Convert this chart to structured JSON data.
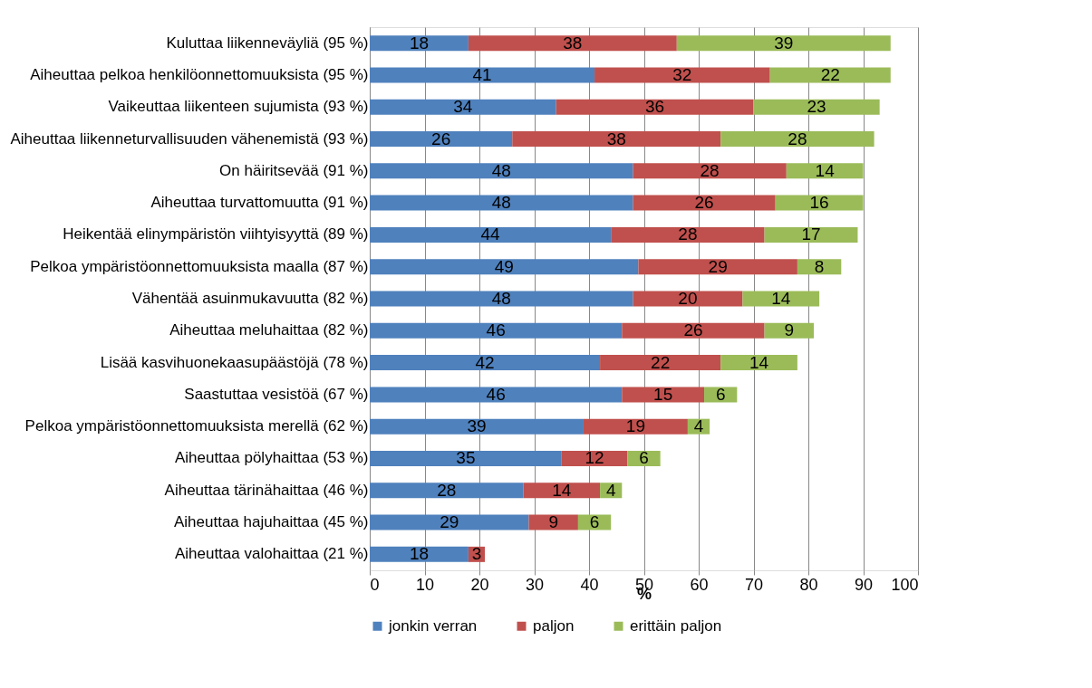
{
  "chart_data": {
    "type": "bar",
    "orientation": "horizontal",
    "stacked": true,
    "xlabel": "%",
    "categories": [
      "Kuluttaa liikenneväyliä (95 %)",
      "Aiheuttaa pelkoa henkilöonnettomuuksista (95 %)",
      "Vaikeuttaa liikenteen sujumista (93 %)",
      "Aiheuttaa liikenneturvallisuuden vähenemistä (93 %)",
      "On häiritsevää (91 %)",
      "Aiheuttaa turvattomuutta (91 %)",
      "Heikentää elinympäristön viihtyisyyttä (89 %)",
      "Pelkoa ympäristöonnettomuuksista maalla (87 %)",
      "Vähentää asuinmukavuutta (82 %)",
      "Aiheuttaa meluhaittaa (82 %)",
      "Lisää kasvihuonekaasupäästöjä (78 %)",
      "Saastuttaa vesistöä (67 %)",
      "Pelkoa ympäristöonnettomuuksista merellä (62 %)",
      "Aiheuttaa pölyhaittaa (53 %)",
      "Aiheuttaa tärinähaittaa (46 %)",
      "Aiheuttaa hajuhaittaa (45 %)",
      "Aiheuttaa valohaittaa (21 %)"
    ],
    "series": [
      {
        "name": "jonkin verran",
        "color": "#4f81bd",
        "values": [
          18,
          41,
          34,
          26,
          48,
          48,
          44,
          49,
          48,
          46,
          42,
          46,
          39,
          35,
          28,
          29,
          18
        ]
      },
      {
        "name": "paljon",
        "color": "#c0504d",
        "values": [
          38,
          32,
          36,
          38,
          28,
          26,
          28,
          29,
          20,
          26,
          22,
          15,
          19,
          12,
          14,
          9,
          3
        ]
      },
      {
        "name": "erittäin paljon",
        "color": "#9bbb59",
        "values": [
          39,
          22,
          23,
          28,
          14,
          16,
          17,
          8,
          14,
          9,
          14,
          6,
          4,
          6,
          4,
          6,
          null
        ]
      }
    ],
    "xlim": [
      0,
      100
    ],
    "xticks": [
      0,
      10,
      20,
      30,
      40,
      50,
      60,
      70,
      80,
      90,
      100
    ],
    "grid": "x",
    "legend": "bottom",
    "data_labels": true
  }
}
